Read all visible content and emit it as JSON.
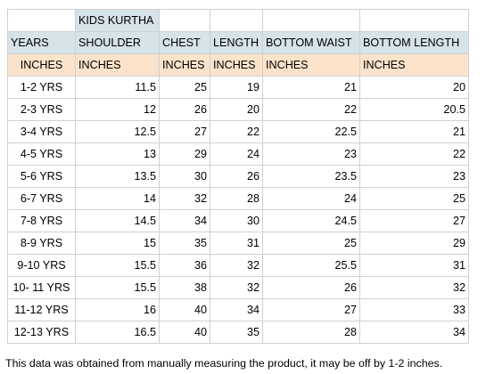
{
  "table": {
    "title": "KIDS KURTHA",
    "headers": [
      "YEARS",
      "SHOULDER",
      "CHEST",
      "LENGTH",
      "BOTTOM WAIST",
      "BOTTOM LENGTH"
    ],
    "units": [
      "INCHES",
      "INCHES",
      "INCHES",
      "INCHES",
      "INCHES",
      "INCHES"
    ],
    "rows": [
      [
        "1-2 YRS",
        "11.5",
        "25",
        "19",
        "21",
        "20"
      ],
      [
        "2-3 YRS",
        "12",
        "26",
        "20",
        "22",
        "20.5"
      ],
      [
        "3-4 YRS",
        "12.5",
        "27",
        "22",
        "22.5",
        "21"
      ],
      [
        "4-5 YRS",
        "13",
        "29",
        "24",
        "23",
        "22"
      ],
      [
        "5-6 YRS",
        "13.5",
        "30",
        "26",
        "23.5",
        "23"
      ],
      [
        "6-7 YRS",
        "14",
        "32",
        "28",
        "24",
        "25"
      ],
      [
        "7-8 YRS",
        "14.5",
        "34",
        "30",
        "24.5",
        "27"
      ],
      [
        "8-9 YRS",
        "15",
        "35",
        "31",
        "25",
        "29"
      ],
      [
        "9-10 YRS",
        "15.5",
        "36",
        "32",
        "25.5",
        "31"
      ],
      [
        "10- 11 YRS",
        "15.5",
        "38",
        "32",
        "26",
        "32"
      ],
      [
        "11-12 YRS",
        "16",
        "40",
        "34",
        "27",
        "33"
      ],
      [
        "12-13 YRS",
        "16.5",
        "40",
        "35",
        "28",
        "34"
      ]
    ]
  },
  "footnote": "This data was obtained from manually measuring the product, it may be off by 1-2 inches.",
  "colors": {
    "header_fill": "#d6e3e8",
    "units_fill": "#fbe3cb",
    "grid": "#d0d0d0"
  }
}
